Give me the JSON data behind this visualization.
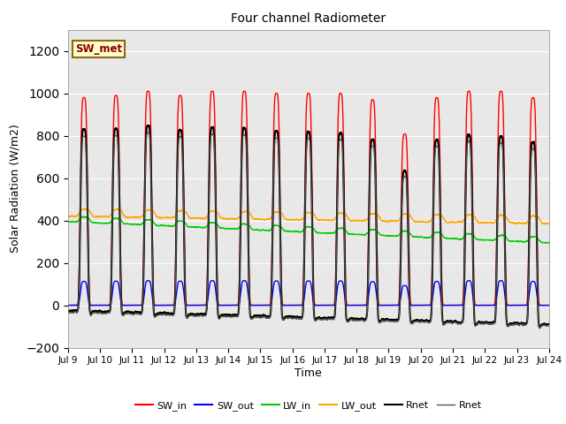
{
  "title": "Four channel Radiometer",
  "xlabel": "Time",
  "ylabel": "Solar Radiation (W/m2)",
  "ylim": [
    -200,
    1300
  ],
  "yticks": [
    -200,
    0,
    200,
    400,
    600,
    800,
    1000,
    1200
  ],
  "annotation_text": "SW_met",
  "series": [
    {
      "label": "SW_in",
      "color": "#FF0000",
      "lw": 1.0
    },
    {
      "label": "SW_out",
      "color": "#0000FF",
      "lw": 1.0
    },
    {
      "label": "LW_in",
      "color": "#00CC00",
      "lw": 1.0
    },
    {
      "label": "LW_out",
      "color": "#FFA500",
      "lw": 1.0
    },
    {
      "label": "Rnet",
      "color": "#000000",
      "lw": 1.5
    },
    {
      "label": "Rnet",
      "color": "#555555",
      "lw": 0.8
    }
  ],
  "xticklabels": [
    "Jul 9",
    "Jul 10",
    "Jul 11",
    "Jul 12",
    "Jul 13",
    "Jul 14",
    "Jul 15",
    "Jul 16",
    "Jul 17",
    "Jul 18",
    "Jul 19",
    "Jul 20",
    "Jul 21",
    "Jul 22",
    "Jul 23",
    "Jul 24"
  ],
  "n_days": 15,
  "pts_per_day": 480,
  "background_color": "#E8E8E8",
  "legend_ncol": 6
}
